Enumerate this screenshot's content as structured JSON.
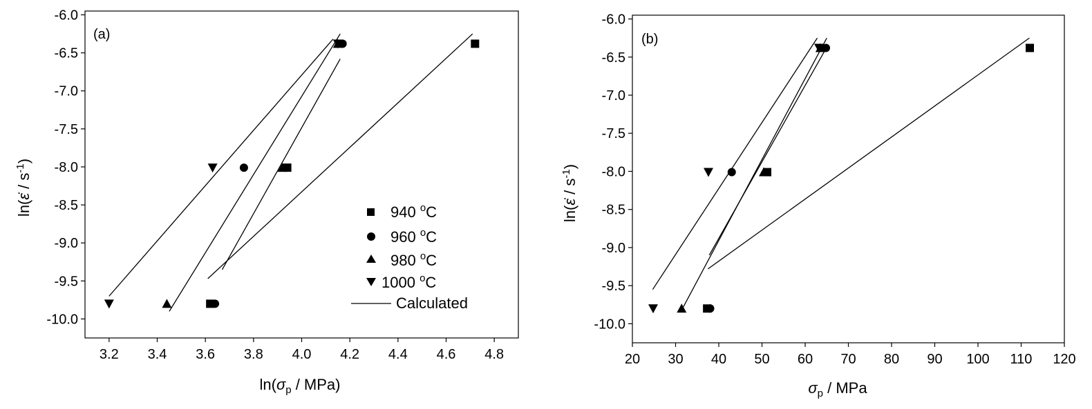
{
  "chart_data": [
    {
      "type": "scatter",
      "panel_label": "(a)",
      "xlabel": "ln(σp / MPa)",
      "ylabel": "ln(ε̇ / s-1)",
      "xlim": [
        3.1,
        4.9
      ],
      "ylim": [
        -10.25,
        -5.95
      ],
      "xticks": [
        "3.2",
        "3.4",
        "3.6",
        "3.8",
        "4.0",
        "4.2",
        "4.4",
        "4.6",
        "4.8"
      ],
      "yticks": [
        "-6.0",
        "-6.5",
        "-7.0",
        "-7.5",
        "-8.0",
        "-8.5",
        "-9.0",
        "-9.5",
        "-10.0"
      ],
      "legend_position": "lower-right",
      "series": [
        {
          "name": "940 °C",
          "marker": "square",
          "points": [
            [
              3.62,
              -9.8
            ],
            [
              3.94,
              -8.01
            ],
            [
              4.72,
              -6.38
            ]
          ],
          "fit": [
            [
              3.61,
              -9.47
            ],
            [
              4.71,
              -6.25
            ]
          ]
        },
        {
          "name": "960 °C",
          "marker": "circle",
          "points": [
            [
              3.64,
              -9.8
            ],
            [
              3.76,
              -8.01
            ],
            [
              4.17,
              -6.38
            ]
          ],
          "fit": [
            [
              3.67,
              -9.35
            ],
            [
              4.16,
              -6.58
            ]
          ]
        },
        {
          "name": "980 °C",
          "marker": "triangle-up",
          "points": [
            [
              3.44,
              -9.8
            ],
            [
              3.92,
              -8.01
            ],
            [
              4.15,
              -6.38
            ]
          ],
          "fit": [
            [
              3.45,
              -9.9
            ],
            [
              4.16,
              -6.25
            ]
          ]
        },
        {
          "name": "1000 °C",
          "marker": "triangle-down",
          "points": [
            [
              3.2,
              -9.8
            ],
            [
              3.63,
              -8.01
            ],
            [
              4.15,
              -6.38
            ]
          ],
          "fit": [
            [
              3.2,
              -9.7
            ],
            [
              4.13,
              -6.32
            ]
          ]
        }
      ],
      "legend_line_label": "Calculated"
    },
    {
      "type": "scatter",
      "panel_label": "(b)",
      "xlabel": "σp / MPa",
      "ylabel": "ln(ε̇ / s-1)",
      "xlim": [
        20,
        120
      ],
      "ylim": [
        -10.25,
        -5.95
      ],
      "xticks": [
        "20",
        "30",
        "40",
        "50",
        "60",
        "70",
        "80",
        "90",
        "100",
        "110",
        "120"
      ],
      "yticks": [
        "-6.0",
        "-6.5",
        "-7.0",
        "-7.5",
        "-8.0",
        "-8.5",
        "-9.0",
        "-9.5",
        "-10.0"
      ],
      "series": [
        {
          "name": "940 °C",
          "marker": "square",
          "points": [
            [
              37.3,
              -9.8
            ],
            [
              51.2,
              -8.01
            ],
            [
              112,
              -6.38
            ]
          ],
          "fit": [
            [
              37.5,
              -9.28
            ],
            [
              111.9,
              -6.25
            ]
          ]
        },
        {
          "name": "960 °C",
          "marker": "circle",
          "points": [
            [
              38,
              -9.8
            ],
            [
              43,
              -8.01
            ],
            [
              64.8,
              -6.38
            ]
          ],
          "fit": [
            [
              37.8,
              -9.1
            ],
            [
              64.5,
              -6.42
            ]
          ]
        },
        {
          "name": "980 °C",
          "marker": "triangle-up",
          "points": [
            [
              31.4,
              -9.8
            ],
            [
              50.4,
              -8.01
            ],
            [
              63.5,
              -6.38
            ]
          ],
          "fit": [
            [
              31.6,
              -9.8
            ],
            [
              65,
              -6.25
            ]
          ]
        },
        {
          "name": "1000 °C",
          "marker": "triangle-down",
          "points": [
            [
              24.8,
              -9.8
            ],
            [
              37.6,
              -8.01
            ],
            [
              63.2,
              -6.38
            ]
          ],
          "fit": [
            [
              24.7,
              -9.55
            ],
            [
              62.8,
              -6.25
            ]
          ]
        }
      ]
    }
  ],
  "legend": {
    "entries": [
      {
        "value": "940 ",
        "sup": "o",
        "unit": "C",
        "marker": "square"
      },
      {
        "value": "960 ",
        "sup": "o",
        "unit": "C",
        "marker": "circle"
      },
      {
        "value": "980 ",
        "sup": "o",
        "unit": "C",
        "marker": "triangle-up"
      },
      {
        "value": "1000 ",
        "sup": "o",
        "unit": "C",
        "marker": "triangle-down"
      }
    ],
    "line_label": "Calculated"
  },
  "labels": {
    "a_x_prefix": "ln(",
    "a_x_sigma": "σ",
    "a_x_sub": "p",
    "a_x_suffix": " / MPa)",
    "b_x_sigma": "σ",
    "b_x_sub": "p",
    "b_x_suffix": " / MPa",
    "y_prefix": "ln(",
    "y_epsdot": "ε̇",
    "y_unit": " / s",
    "y_sup": "-1",
    "y_suffix": ")"
  },
  "colors": {
    "ink": "#000000",
    "background": "#ffffff"
  }
}
